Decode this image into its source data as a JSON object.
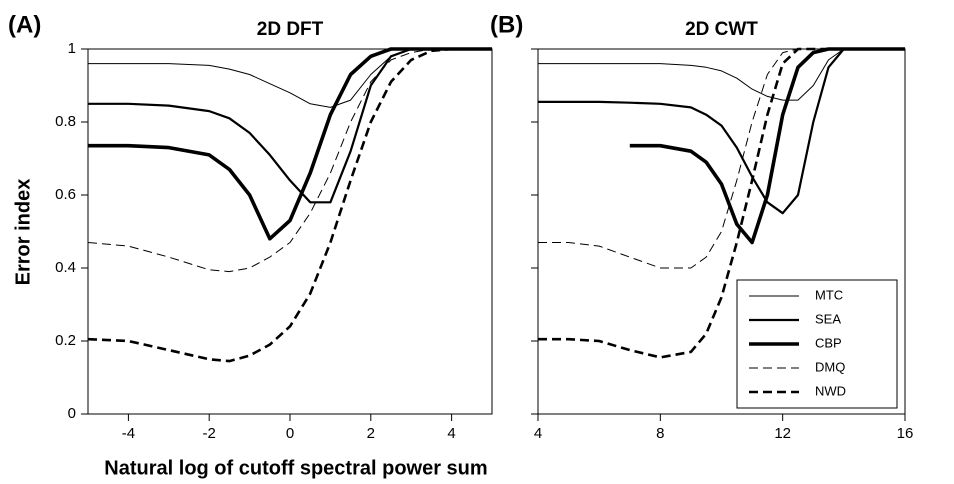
{
  "chart_data": [
    {
      "type": "line",
      "panel": "(A)",
      "title": "2D DFT",
      "x": [
        -5,
        -4,
        -3,
        -2,
        -1.5,
        -1,
        -0.5,
        0,
        0.5,
        1,
        1.5,
        2,
        2.5,
        3,
        3.5,
        4,
        5
      ],
      "series": [
        {
          "name": "MTC",
          "color": "#000000",
          "line_width": 1,
          "dashed": false,
          "values": [
            0.96,
            0.96,
            0.96,
            0.955,
            0.945,
            0.93,
            0.905,
            0.88,
            0.85,
            0.84,
            0.86,
            0.93,
            0.98,
            1,
            1,
            1,
            1
          ]
        },
        {
          "name": "SEA",
          "color": "#000000",
          "line_width": 2.2,
          "dashed": false,
          "values": [
            0.85,
            0.85,
            0.845,
            0.83,
            0.81,
            0.77,
            0.71,
            0.64,
            0.58,
            0.58,
            0.72,
            0.9,
            0.98,
            1,
            1,
            1,
            1
          ]
        },
        {
          "name": "CBP",
          "color": "#000000",
          "line_width": 3.6,
          "dashed": false,
          "values": [
            0.735,
            0.735,
            0.73,
            0.71,
            0.67,
            0.6,
            0.48,
            0.53,
            0.66,
            0.82,
            0.93,
            0.98,
            1,
            1,
            1,
            1,
            1
          ]
        },
        {
          "name": "DMQ",
          "color": "#000000",
          "line_width": 1,
          "dashed": true,
          "values": [
            0.47,
            0.46,
            0.43,
            0.395,
            0.39,
            0.4,
            0.43,
            0.47,
            0.55,
            0.66,
            0.8,
            0.91,
            0.97,
            0.99,
            1,
            1,
            1
          ]
        },
        {
          "name": "NWD",
          "color": "#000000",
          "line_width": 2.6,
          "dashed": true,
          "values": [
            0.205,
            0.2,
            0.175,
            0.15,
            0.145,
            0.16,
            0.19,
            0.24,
            0.33,
            0.47,
            0.64,
            0.8,
            0.91,
            0.97,
            0.995,
            1,
            1
          ]
        }
      ],
      "xlim": [
        -5,
        5
      ],
      "xticks": [
        -4,
        -2,
        0,
        2,
        4
      ],
      "ylim": [
        0,
        1
      ],
      "yticks": [
        0,
        0.2,
        0.4,
        0.6,
        0.8,
        1
      ],
      "show_ytick_labels": true
    },
    {
      "type": "line",
      "panel": "(B)",
      "title": "2D CWT",
      "x": [
        4,
        5,
        6,
        7,
        8,
        9,
        9.5,
        10,
        10.5,
        11,
        11.5,
        12,
        12.5,
        13,
        13.5,
        14,
        15,
        16
      ],
      "series": [
        {
          "name": "MTC",
          "color": "#000000",
          "line_width": 1,
          "dashed": false,
          "values": [
            0.96,
            0.96,
            0.96,
            0.96,
            0.96,
            0.955,
            0.95,
            0.94,
            0.92,
            0.89,
            0.87,
            0.86,
            0.86,
            0.9,
            0.97,
            1,
            1,
            1
          ]
        },
        {
          "name": "SEA",
          "color": "#000000",
          "line_width": 2.2,
          "dashed": false,
          "values": [
            0.855,
            0.855,
            0.855,
            0.853,
            0.85,
            0.84,
            0.82,
            0.79,
            0.73,
            0.65,
            0.58,
            0.55,
            0.6,
            0.8,
            0.95,
            1,
            1,
            1
          ]
        },
        {
          "name": "CBP",
          "color": "#000000",
          "line_width": 3.6,
          "dashed": false,
          "values": [
            null,
            null,
            null,
            0.735,
            0.735,
            0.72,
            0.69,
            0.63,
            0.52,
            0.47,
            0.6,
            0.82,
            0.95,
            0.99,
            1,
            1,
            1,
            1
          ]
        },
        {
          "name": "DMQ",
          "color": "#000000",
          "line_width": 1,
          "dashed": true,
          "values": [
            0.47,
            0.47,
            0.46,
            0.43,
            0.4,
            0.4,
            0.43,
            0.5,
            0.64,
            0.8,
            0.93,
            0.99,
            1,
            1,
            1,
            1,
            1,
            1
          ]
        },
        {
          "name": "NWD",
          "color": "#000000",
          "line_width": 2.6,
          "dashed": true,
          "values": [
            0.205,
            0.205,
            0.2,
            0.175,
            0.155,
            0.17,
            0.22,
            0.32,
            0.47,
            0.64,
            0.82,
            0.96,
            1,
            1,
            1,
            1,
            1,
            1
          ]
        }
      ],
      "xlim": [
        4,
        16
      ],
      "xticks": [
        4,
        8,
        12,
        16
      ],
      "ylim": [
        0,
        1
      ],
      "yticks": [
        0,
        0.2,
        0.4,
        0.6,
        0.8,
        1
      ],
      "show_ytick_labels": false,
      "legend": "lower right"
    }
  ],
  "xlabel": "Natural log of cutoff spectral power sum",
  "ylabel": "Error index"
}
